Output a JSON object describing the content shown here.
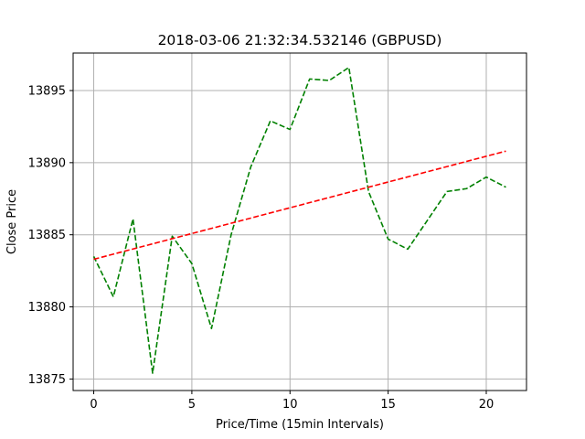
{
  "chart_data": {
    "type": "line",
    "title": "2018-03-06 21:32:34.532146 (GBPUSD)",
    "xlabel": "Price/Time (15min Intervals)",
    "ylabel": "Close Price",
    "xlim": [
      -1.05,
      22.05
    ],
    "ylim": [
      13874.2,
      13897.6
    ],
    "xticks": [
      0,
      5,
      10,
      15,
      20
    ],
    "yticks": [
      13875,
      13880,
      13885,
      13890,
      13895
    ],
    "grid": true,
    "colors": {
      "price": "#008000",
      "trend": "#ff0000",
      "grid": "#b0b0b0"
    },
    "series": [
      {
        "key": "price",
        "style": "dashed",
        "x": [
          0,
          1,
          2,
          3,
          4,
          5,
          6,
          7,
          8,
          9,
          10,
          11,
          12,
          13,
          14,
          15,
          16,
          17,
          18,
          19,
          20,
          21
        ],
        "y": [
          13883.5,
          13880.7,
          13886.1,
          13875.4,
          13884.9,
          13883.0,
          13878.5,
          13885.0,
          13889.7,
          13892.9,
          13892.3,
          13895.8,
          13895.7,
          13896.6,
          13888.0,
          13884.7,
          13884.0,
          13886.0,
          13888.0,
          13888.2,
          13889.0,
          13888.3
        ]
      },
      {
        "key": "trend",
        "style": "dashed",
        "x": [
          0,
          21
        ],
        "y": [
          13883.3,
          13890.8
        ]
      }
    ]
  }
}
